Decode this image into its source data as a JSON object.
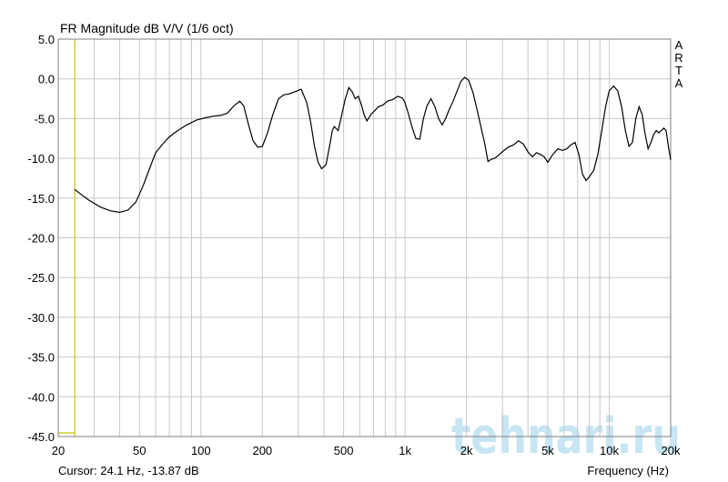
{
  "chart_data": {
    "type": "line",
    "title": "FR Magnitude dB V/V (1/6 oct)",
    "xlabel": "Frequency (Hz)",
    "ylabel": "",
    "x_scale": "log",
    "xlim": [
      20,
      20000
    ],
    "ylim": [
      -45,
      5
    ],
    "y_ticks": [
      "5.0",
      "0.0",
      "-5.0",
      "-10.0",
      "-15.0",
      "-20.0",
      "-25.0",
      "-30.0",
      "-35.0",
      "-40.0",
      "-45.0"
    ],
    "y_tick_values": [
      5,
      0,
      -5,
      -10,
      -15,
      -20,
      -25,
      -30,
      -35,
      -40,
      -45
    ],
    "x_ticks": [
      "20",
      "50",
      "100",
      "200",
      "500",
      "1k",
      "2k",
      "5k",
      "10k",
      "20k"
    ],
    "x_tick_values": [
      20,
      50,
      100,
      200,
      500,
      1000,
      2000,
      5000,
      10000,
      20000
    ],
    "grid": true,
    "side_label": "ARTA",
    "cursor_text": "Cursor: 24.1 Hz, -13.87 dB",
    "cursor_x": 24.1,
    "watermark": "tehnari.ru",
    "colors": {
      "curve": "#000000",
      "grid": "#c8c8c8",
      "cursor": "#c8c800",
      "watermark": "#9ad0ea"
    },
    "series": [
      {
        "x": [
          24,
          28,
          32,
          36,
          40,
          44,
          48,
          52,
          56,
          60,
          65,
          70,
          76,
          85,
          95,
          105,
          115,
          125,
          135,
          145,
          155,
          162,
          170,
          180,
          190,
          200,
          212,
          225,
          240,
          255,
          270,
          290,
          310,
          330,
          345,
          360,
          375,
          390,
          410,
          430,
          440,
          450,
          470,
          490,
          510,
          530,
          550,
          570,
          590,
          610,
          630,
          650,
          680,
          710,
          740,
          780,
          820,
          870,
          920,
          970,
          1000,
          1040,
          1080,
          1130,
          1180,
          1230,
          1280,
          1340,
          1400,
          1460,
          1520,
          1580,
          1650,
          1720,
          1800,
          1880,
          1960,
          2050,
          2150,
          2250,
          2350,
          2450,
          2550,
          2650,
          2750,
          2900,
          3050,
          3200,
          3400,
          3600,
          3800,
          4000,
          4200,
          4400,
          4600,
          4800,
          5000,
          5300,
          5600,
          5900,
          6200,
          6500,
          6800,
          7100,
          7400,
          7700,
          8000,
          8400,
          8800,
          9200,
          9600,
          10000,
          10500,
          11000,
          11500,
          12000,
          12500,
          13000,
          13500,
          14000,
          14500,
          15000,
          15500,
          16000,
          16500,
          17000,
          17500,
          18000,
          18500,
          19000,
          19500,
          20000
        ],
        "y": [
          -13.9,
          -15.2,
          -16.1,
          -16.6,
          -16.8,
          -16.5,
          -15.5,
          -13.5,
          -11.3,
          -9.3,
          -8.2,
          -7.3,
          -6.6,
          -5.8,
          -5.2,
          -4.9,
          -4.7,
          -4.6,
          -4.3,
          -3.4,
          -2.8,
          -3.4,
          -5.5,
          -7.8,
          -8.6,
          -8.5,
          -6.8,
          -4.5,
          -2.5,
          -2.0,
          -1.9,
          -1.6,
          -1.3,
          -3.0,
          -5.5,
          -8.5,
          -10.5,
          -11.3,
          -10.8,
          -8.0,
          -6.5,
          -6.0,
          -6.5,
          -4.5,
          -2.5,
          -1.1,
          -1.6,
          -2.5,
          -2.2,
          -3.2,
          -4.5,
          -5.3,
          -4.5,
          -4.0,
          -3.5,
          -3.3,
          -2.8,
          -2.6,
          -2.2,
          -2.4,
          -3.0,
          -4.5,
          -6.0,
          -7.5,
          -7.6,
          -5.0,
          -3.4,
          -2.5,
          -3.5,
          -5.0,
          -5.8,
          -5.0,
          -3.8,
          -2.8,
          -1.5,
          -0.3,
          0.2,
          -0.2,
          -1.7,
          -3.8,
          -6.0,
          -8.0,
          -10.4,
          -10.1,
          -10.0,
          -9.5,
          -9.0,
          -8.6,
          -8.3,
          -7.8,
          -8.2,
          -9.2,
          -9.8,
          -9.3,
          -9.5,
          -9.8,
          -10.5,
          -9.5,
          -8.8,
          -9.0,
          -8.8,
          -8.3,
          -8.0,
          -9.5,
          -12.0,
          -12.8,
          -12.3,
          -11.5,
          -9.5,
          -6.5,
          -3.5,
          -1.5,
          -0.9,
          -1.5,
          -3.5,
          -6.5,
          -8.5,
          -8.0,
          -5.0,
          -3.5,
          -4.5,
          -7.0,
          -8.8,
          -8.0,
          -7.0,
          -6.5,
          -6.8,
          -6.5,
          -6.2,
          -6.5,
          -8.5,
          -10.2
        ]
      }
    ]
  }
}
